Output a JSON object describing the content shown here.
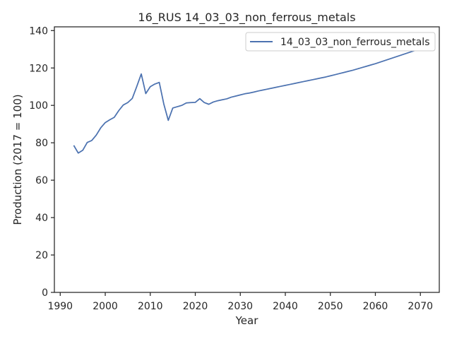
{
  "chart_data": {
    "type": "line",
    "title": "16_RUS 14_03_03_non_ferrous_metals",
    "xlabel": "Year",
    "ylabel": "Production (2017 = 100)",
    "xlim": [
      1988.7,
      2074.2
    ],
    "ylim": [
      0,
      142
    ],
    "xticks": [
      1990,
      2000,
      2010,
      2020,
      2030,
      2040,
      2050,
      2060,
      2070
    ],
    "yticks": [
      0,
      20,
      40,
      60,
      80,
      100,
      120,
      140
    ],
    "grid": false,
    "legend_position": "top-right",
    "series": [
      {
        "name": "14_03_03_non_ferrous_metals",
        "color": "#4c72b0",
        "x": [
          1993,
          1994,
          1995,
          1996,
          1997,
          1998,
          1999,
          2000,
          2001,
          2002,
          2003,
          2004,
          2005,
          2006,
          2007,
          2008,
          2009,
          2010,
          2011,
          2012,
          2013,
          2014,
          2015,
          2016,
          2017,
          2018,
          2019,
          2020,
          2021,
          2022,
          2023,
          2024,
          2025,
          2026,
          2027,
          2028,
          2029,
          2030,
          2031,
          2032,
          2033,
          2034,
          2035,
          2036,
          2037,
          2038,
          2039,
          2040,
          2041,
          2042,
          2043,
          2044,
          2045,
          2046,
          2047,
          2048,
          2049,
          2050,
          2051,
          2052,
          2053,
          2054,
          2055,
          2056,
          2057,
          2058,
          2059,
          2060,
          2061,
          2062,
          2063,
          2064,
          2065,
          2066,
          2067,
          2068,
          2069,
          2070
        ],
        "values": [
          78.6,
          74.5,
          76.0,
          80.2,
          81.2,
          84.1,
          88.0,
          90.8,
          92.3,
          93.6,
          97.2,
          100.2,
          101.5,
          103.7,
          110.1,
          116.8,
          106.3,
          110.0,
          111.4,
          112.3,
          100.8,
          92.0,
          98.6,
          99.3,
          100.0,
          101.3,
          101.5,
          101.6,
          103.6,
          101.5,
          100.6,
          101.8,
          102.5,
          103.0,
          103.5,
          104.4,
          105.0,
          105.6,
          106.2,
          106.6,
          107.1,
          107.7,
          108.2,
          108.7,
          109.2,
          109.7,
          110.2,
          110.7,
          111.2,
          111.7,
          112.2,
          112.7,
          113.2,
          113.7,
          114.2,
          114.7,
          115.2,
          115.8,
          116.4,
          117.0,
          117.6,
          118.2,
          118.8,
          119.5,
          120.2,
          120.9,
          121.6,
          122.3,
          123.1,
          123.9,
          124.7,
          125.5,
          126.3,
          127.1,
          127.9,
          128.7,
          129.5,
          130.3
        ]
      }
    ]
  }
}
